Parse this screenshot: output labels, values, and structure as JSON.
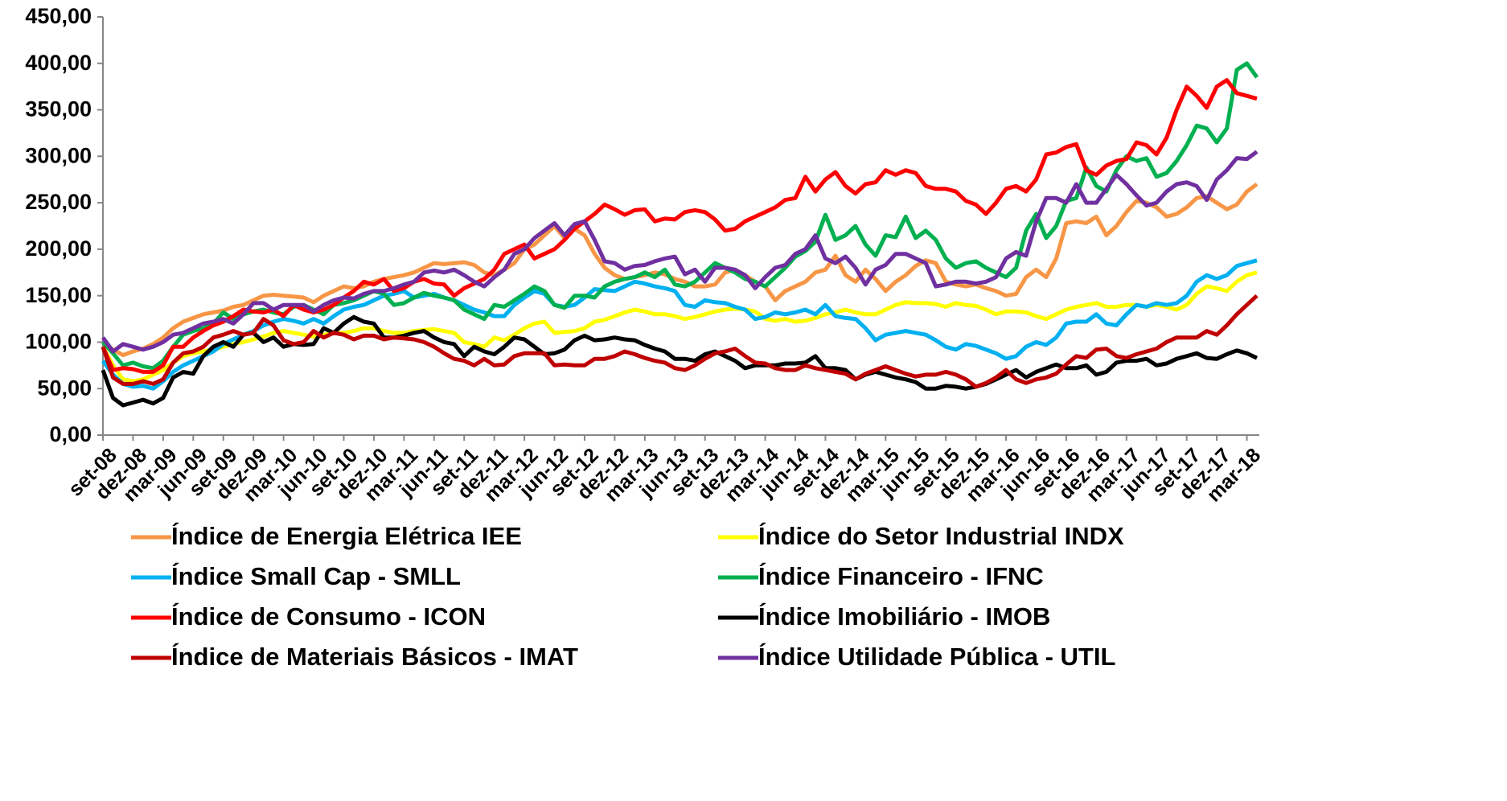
{
  "chart_data": {
    "type": "line",
    "categories": [
      "set-08",
      null,
      null,
      "dez-08",
      null,
      null,
      "mar-09",
      null,
      null,
      "jun-09",
      null,
      null,
      "set-09",
      null,
      null,
      "dez-09",
      null,
      null,
      "mar-10",
      null,
      null,
      "jun-10",
      null,
      null,
      "set-10",
      null,
      null,
      "dez-10",
      null,
      null,
      "mar-11",
      null,
      null,
      "jun-11",
      null,
      null,
      "set-11",
      null,
      null,
      "dez-11",
      null,
      null,
      "mar-12",
      null,
      null,
      "jun-12",
      null,
      null,
      "set-12",
      null,
      null,
      "dez-12",
      null,
      null,
      "mar-13",
      null,
      null,
      "jun-13",
      null,
      null,
      "set-13",
      null,
      null,
      "dez-13",
      null,
      null,
      "mar-14",
      null,
      null,
      "jun-14",
      null,
      null,
      "set-14",
      null,
      null,
      "dez-14",
      null,
      null,
      "mar-15",
      null,
      null,
      "jun-15",
      null,
      null,
      "set-15",
      null,
      null,
      "dez-15",
      null,
      null,
      "mar-16",
      null,
      null,
      "jun-16",
      null,
      null,
      "set-16",
      null,
      null,
      "dez-16",
      null,
      null,
      "mar-17",
      null,
      null,
      "jun-17",
      null,
      null,
      "set-17",
      null,
      null,
      "dez-17",
      null,
      null,
      "mar-18",
      null
    ],
    "ylim": [
      0,
      450
    ],
    "yticks": [
      {
        "value": 0,
        "label": "0,00"
      },
      {
        "value": 50,
        "label": "50,00"
      },
      {
        "value": 100,
        "label": "100,00"
      },
      {
        "value": 150,
        "label": "150,00"
      },
      {
        "value": 200,
        "label": "200,00"
      },
      {
        "value": 250,
        "label": "250,00"
      },
      {
        "value": 300,
        "label": "300,00"
      },
      {
        "value": 350,
        "label": "350,00"
      },
      {
        "value": 400,
        "label": "400,00"
      },
      {
        "value": 450,
        "label": "450,00"
      }
    ],
    "grid": false,
    "legend": "bottom",
    "series": [
      {
        "name": "Índice de Energia Elétrica IEE",
        "color": "#F79646",
        "values": [
          100,
          92,
          86,
          90,
          93,
          98,
          105,
          115,
          122,
          126,
          130,
          132,
          134,
          138,
          140,
          145,
          150,
          151,
          150,
          149,
          148,
          143,
          150,
          155,
          160,
          158,
          160,
          165,
          168,
          170,
          172,
          175,
          180,
          185,
          184,
          185,
          186,
          183,
          175,
          172,
          178,
          185,
          200,
          205,
          215,
          225,
          212,
          222,
          215,
          195,
          180,
          172,
          168,
          170,
          172,
          175,
          173,
          168,
          165,
          160,
          160,
          162,
          175,
          178,
          172,
          165,
          160,
          145,
          155,
          160,
          165,
          175,
          178,
          193,
          172,
          165,
          178,
          168,
          155,
          165,
          172,
          182,
          188,
          185,
          165,
          162,
          160,
          162,
          158,
          155,
          150,
          152,
          170,
          178,
          170,
          190,
          228,
          230,
          228,
          235,
          215,
          225,
          240,
          252,
          250,
          245,
          235,
          238,
          245,
          255,
          257,
          250,
          243,
          248,
          262,
          270
        ]
      },
      {
        "name": "Índice do Setor Industrial INDX",
        "color": "#FFFF00",
        "values": [
          95,
          75,
          60,
          58,
          60,
          65,
          70,
          78,
          85,
          88,
          90,
          92,
          95,
          98,
          100,
          103,
          106,
          110,
          112,
          110,
          108,
          106,
          108,
          110,
          110,
          112,
          115,
          115,
          112,
          110,
          110,
          112,
          113,
          114,
          112,
          110,
          100,
          98,
          95,
          105,
          102,
          108,
          115,
          120,
          122,
          110,
          111,
          112,
          115,
          122,
          124,
          128,
          132,
          135,
          133,
          130,
          130,
          128,
          125,
          127,
          130,
          133,
          135,
          136,
          135,
          133,
          125,
          123,
          125,
          122,
          123,
          126,
          130,
          132,
          135,
          132,
          130,
          130,
          135,
          140,
          143,
          142,
          142,
          141,
          138,
          142,
          140,
          139,
          135,
          130,
          133,
          133,
          132,
          128,
          125,
          130,
          135,
          138,
          140,
          142,
          138,
          138,
          140,
          140,
          138,
          140,
          138,
          135,
          140,
          152,
          160,
          158,
          155,
          165,
          172,
          175
        ]
      },
      {
        "name": "Índice Small Cap - SMLL",
        "color": "#00B0F0",
        "values": [
          80,
          65,
          55,
          52,
          53,
          50,
          58,
          68,
          75,
          80,
          85,
          90,
          98,
          103,
          108,
          112,
          118,
          122,
          125,
          123,
          120,
          125,
          120,
          128,
          135,
          138,
          140,
          145,
          150,
          152,
          155,
          148,
          150,
          152,
          148,
          145,
          140,
          135,
          132,
          128,
          128,
          140,
          148,
          155,
          152,
          140,
          138,
          140,
          148,
          157,
          156,
          155,
          160,
          165,
          163,
          160,
          158,
          155,
          140,
          138,
          145,
          143,
          142,
          138,
          135,
          125,
          127,
          132,
          130,
          132,
          135,
          130,
          140,
          128,
          126,
          125,
          115,
          102,
          108,
          110,
          112,
          110,
          108,
          102,
          95,
          92,
          98,
          96,
          92,
          88,
          82,
          85,
          95,
          100,
          97,
          105,
          120,
          122,
          122,
          130,
          120,
          118,
          130,
          140,
          138,
          142,
          140,
          142,
          150,
          165,
          172,
          168,
          172,
          182,
          185,
          188
        ]
      },
      {
        "name": "Índice Financeiro - IFNC",
        "color": "#00B050",
        "values": [
          100,
          88,
          75,
          78,
          74,
          72,
          80,
          95,
          108,
          112,
          115,
          120,
          132,
          125,
          130,
          133,
          135,
          132,
          130,
          138,
          140,
          135,
          130,
          140,
          142,
          145,
          150,
          155,
          152,
          140,
          142,
          148,
          153,
          150,
          148,
          145,
          135,
          130,
          125,
          140,
          138,
          145,
          152,
          160,
          155,
          140,
          137,
          150,
          150,
          148,
          160,
          165,
          168,
          170,
          175,
          170,
          178,
          162,
          160,
          165,
          175,
          185,
          180,
          175,
          168,
          165,
          160,
          170,
          180,
          192,
          198,
          208,
          237,
          210,
          215,
          225,
          205,
          193,
          215,
          213,
          235,
          212,
          220,
          210,
          190,
          180,
          185,
          187,
          180,
          175,
          170,
          180,
          220,
          238,
          212,
          225,
          252,
          255,
          288,
          268,
          262,
          285,
          300,
          295,
          298,
          278,
          282,
          295,
          312,
          333,
          330,
          315,
          330,
          393,
          400,
          385
        ]
      },
      {
        "name": "Índice de Consumo - ICON",
        "color": "#FF0000",
        "values": [
          95,
          70,
          72,
          71,
          68,
          68,
          75,
          95,
          95,
          105,
          112,
          118,
          122,
          128,
          135,
          133,
          132,
          135,
          128,
          140,
          135,
          132,
          135,
          140,
          148,
          155,
          165,
          162,
          168,
          155,
          158,
          165,
          168,
          163,
          162,
          150,
          158,
          163,
          168,
          178,
          195,
          200,
          205,
          190,
          195,
          200,
          210,
          222,
          230,
          238,
          248,
          243,
          237,
          242,
          243,
          230,
          233,
          232,
          240,
          242,
          240,
          232,
          220,
          222,
          230,
          235,
          240,
          245,
          253,
          255,
          278,
          262,
          275,
          283,
          268,
          260,
          270,
          272,
          285,
          280,
          285,
          282,
          268,
          265,
          265,
          262,
          252,
          248,
          238,
          250,
          265,
          268,
          262,
          275,
          302,
          304,
          310,
          313,
          285,
          280,
          290,
          295,
          297,
          315,
          312,
          302,
          320,
          350,
          375,
          365,
          352,
          375,
          382,
          368,
          365,
          362
        ]
      },
      {
        "name": "Índice Imobiliário - IMOB",
        "color": "#000000",
        "values": [
          70,
          40,
          32,
          35,
          38,
          34,
          40,
          62,
          68,
          66,
          85,
          95,
          100,
          95,
          108,
          110,
          100,
          105,
          95,
          98,
          97,
          98,
          115,
          110,
          120,
          127,
          122,
          120,
          105,
          105,
          107,
          110,
          112,
          105,
          100,
          98,
          85,
          95,
          90,
          87,
          95,
          105,
          103,
          95,
          87,
          88,
          92,
          102,
          107,
          102,
          103,
          105,
          103,
          102,
          97,
          93,
          90,
          82,
          82,
          80,
          87,
          90,
          85,
          80,
          72,
          75,
          75,
          75,
          77,
          77,
          78,
          85,
          72,
          72,
          70,
          60,
          65,
          68,
          65,
          62,
          60,
          57,
          50,
          50,
          53,
          52,
          50,
          52,
          55,
          60,
          65,
          70,
          62,
          68,
          72,
          76,
          72,
          72,
          75,
          65,
          68,
          78,
          80,
          80,
          82,
          75,
          77,
          82,
          85,
          88,
          83,
          82,
          87,
          91,
          88,
          83
        ]
      },
      {
        "name": "Índice de Materiais Básicos - IMAT",
        "color": "#C00000",
        "values": [
          95,
          62,
          55,
          55,
          58,
          55,
          60,
          78,
          88,
          90,
          95,
          105,
          108,
          112,
          108,
          110,
          125,
          118,
          102,
          98,
          100,
          112,
          105,
          110,
          108,
          103,
          107,
          107,
          103,
          105,
          104,
          103,
          100,
          95,
          88,
          82,
          80,
          75,
          82,
          75,
          76,
          85,
          88,
          88,
          88,
          75,
          76,
          75,
          75,
          82,
          82,
          85,
          90,
          87,
          83,
          80,
          78,
          72,
          70,
          75,
          82,
          88,
          90,
          93,
          85,
          78,
          77,
          72,
          70,
          70,
          75,
          72,
          70,
          68,
          66,
          60,
          66,
          70,
          74,
          70,
          66,
          63,
          65,
          65,
          68,
          65,
          60,
          52,
          56,
          62,
          70,
          60,
          56,
          60,
          62,
          66,
          76,
          85,
          83,
          92,
          93,
          85,
          83,
          87,
          90,
          93,
          100,
          105,
          105,
          105,
          112,
          108,
          118,
          130,
          140,
          150
        ]
      },
      {
        "name": "Índice Utilidade Pública - UTIL",
        "color": "#7030A0",
        "values": [
          105,
          90,
          98,
          95,
          92,
          95,
          100,
          108,
          110,
          115,
          120,
          122,
          125,
          120,
          130,
          142,
          142,
          135,
          140,
          140,
          140,
          133,
          140,
          145,
          148,
          147,
          152,
          155,
          155,
          158,
          162,
          165,
          175,
          177,
          175,
          178,
          172,
          165,
          160,
          170,
          178,
          195,
          200,
          212,
          220,
          228,
          215,
          227,
          230,
          210,
          187,
          185,
          178,
          182,
          183,
          187,
          190,
          192,
          173,
          178,
          165,
          180,
          180,
          178,
          172,
          158,
          170,
          180,
          183,
          195,
          200,
          215,
          190,
          185,
          192,
          180,
          162,
          178,
          183,
          195,
          195,
          190,
          185,
          160,
          162,
          165,
          165,
          163,
          165,
          170,
          190,
          197,
          193,
          230,
          255,
          255,
          250,
          270,
          250,
          250,
          265,
          280,
          270,
          258,
          247,
          250,
          262,
          270,
          272,
          268,
          253,
          275,
          285,
          298,
          297,
          305
        ]
      }
    ]
  }
}
